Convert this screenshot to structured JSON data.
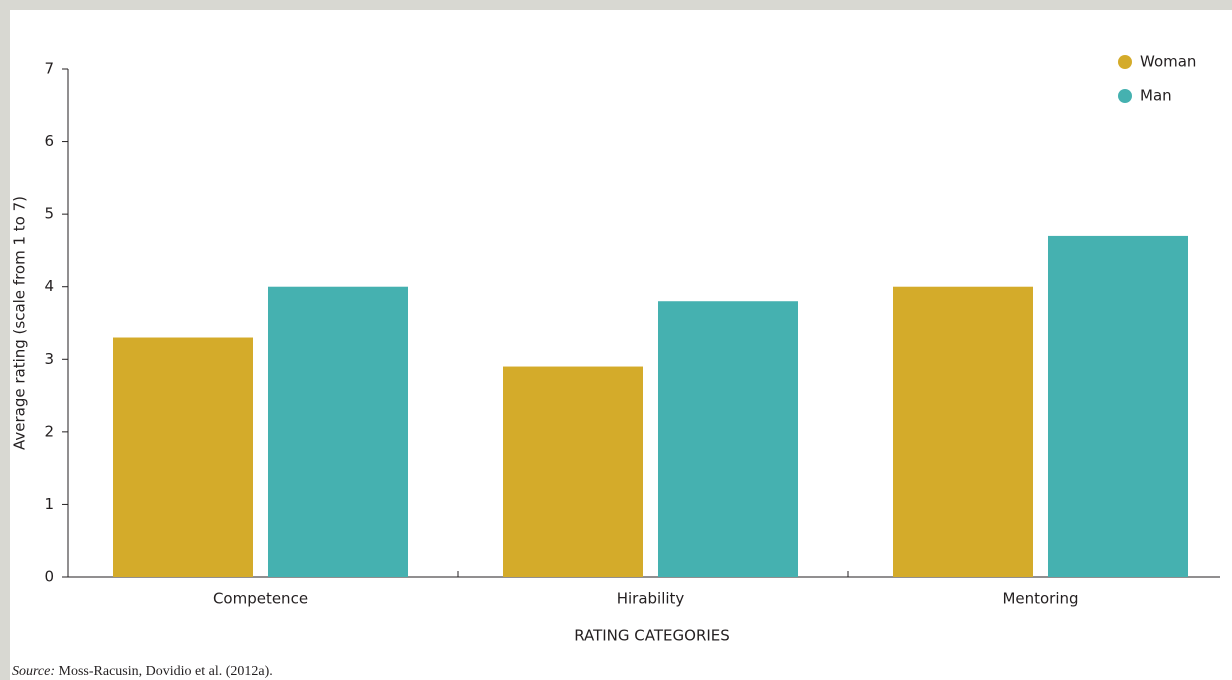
{
  "chart_data": {
    "type": "bar",
    "x_label": "RATING CATEGORIES",
    "y_label": "Average rating (scale from 1 to 7)",
    "categories": [
      "Competence",
      "Hirability",
      "Mentoring"
    ],
    "series": [
      {
        "name": "Woman",
        "color": "#d4ab2a",
        "values": [
          3.3,
          2.9,
          4.0
        ]
      },
      {
        "name": "Man",
        "color": "#45b1b0",
        "values": [
          4.0,
          3.8,
          4.7
        ]
      }
    ],
    "ylim": [
      0,
      7
    ],
    "yticks": [
      0,
      1,
      2,
      3,
      4,
      5,
      6,
      7
    ],
    "legend": "top-right",
    "source_label": "Source:",
    "source_text": "Moss-Racusin, Dovidio et al. (2012a)."
  }
}
